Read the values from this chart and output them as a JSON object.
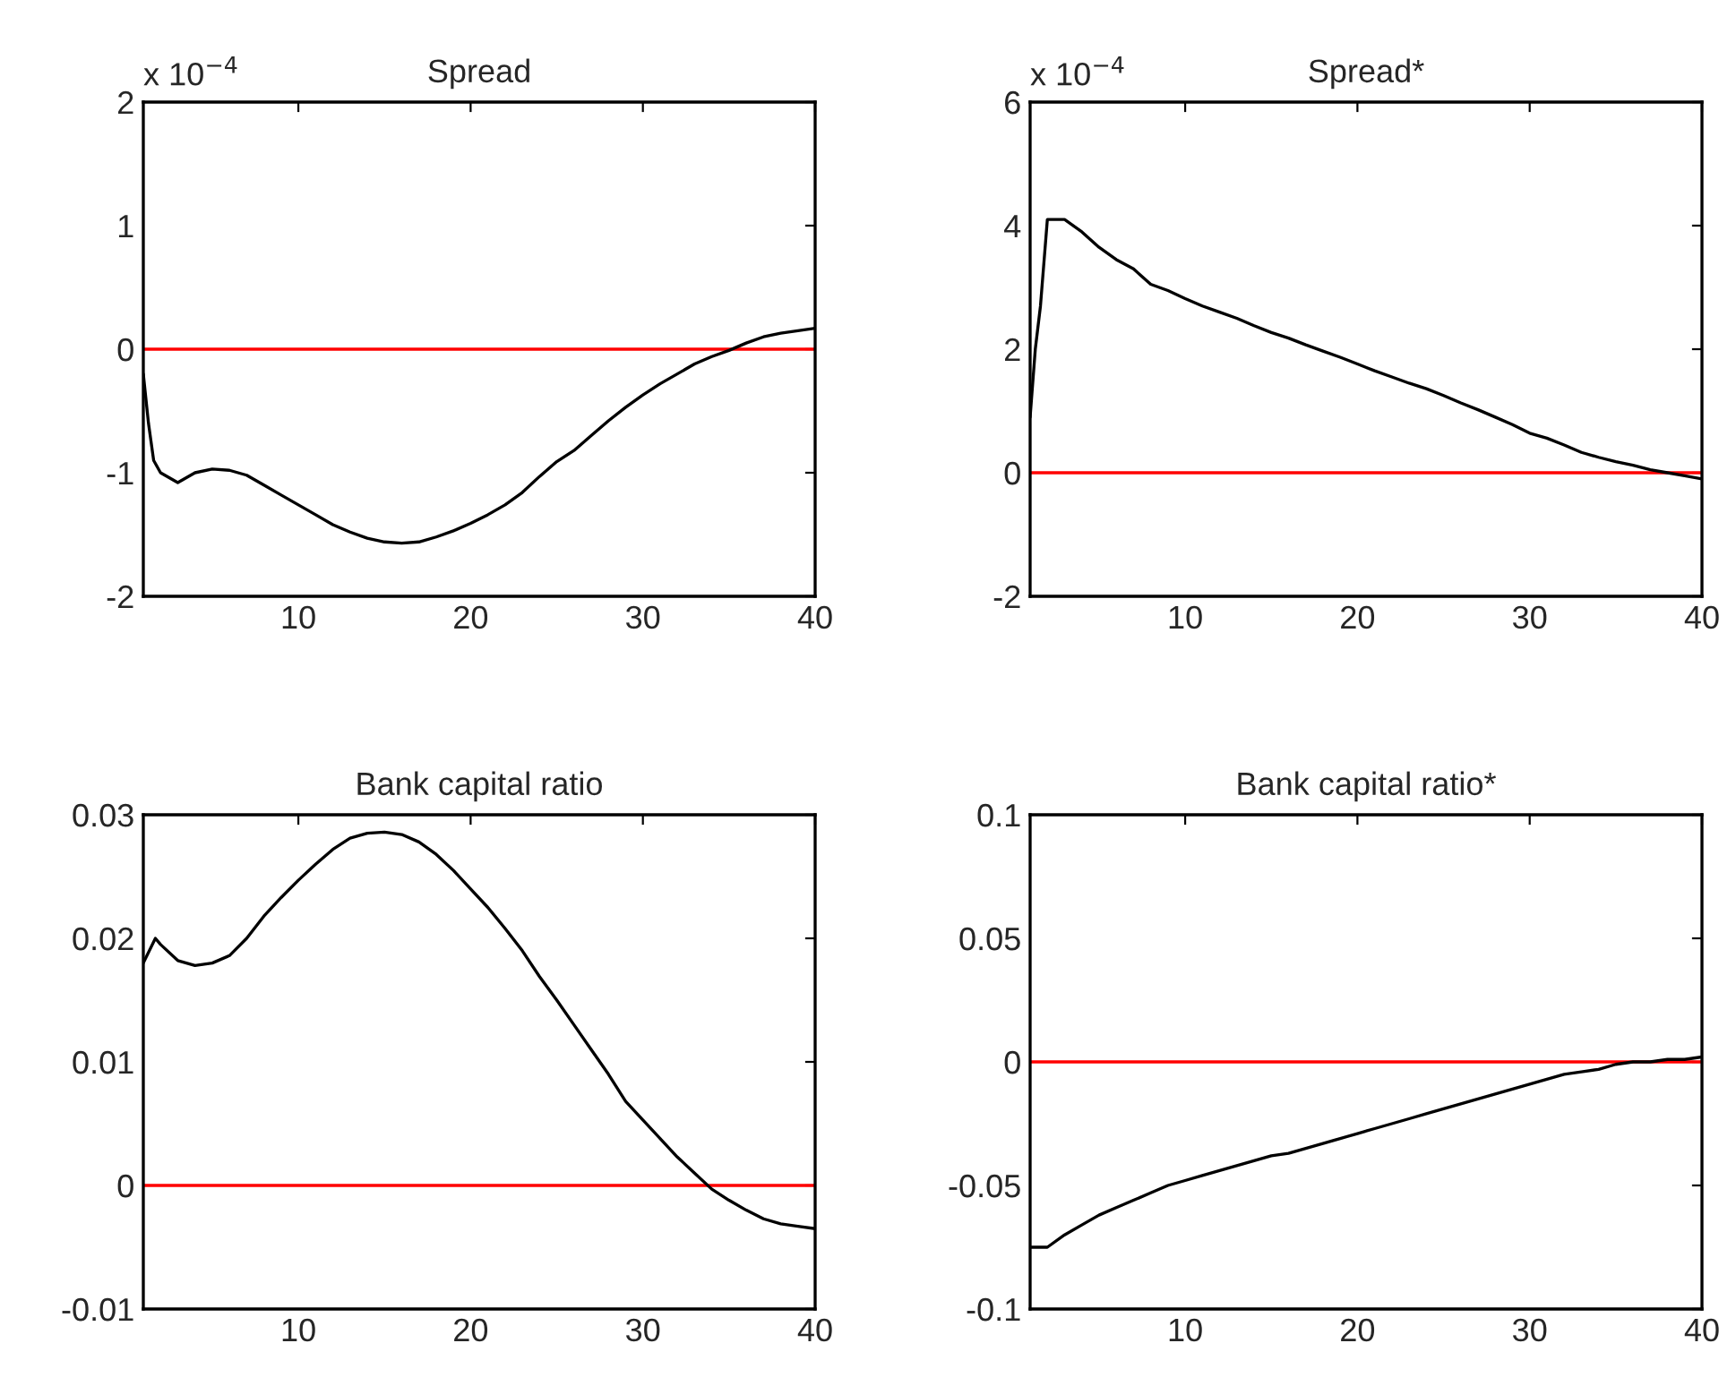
{
  "chart_data": [
    {
      "type": "line",
      "title": "Spread",
      "annotations": [
        "x 10$^{−4}$"
      ],
      "xlim": [
        1,
        40
      ],
      "xticks": [
        10,
        20,
        30,
        40
      ],
      "ylim": [
        -2,
        2
      ],
      "yticks": [
        -2,
        -1,
        0,
        1,
        2
      ],
      "grid": false,
      "legend": false,
      "ref_lines": [
        {
          "axis": "y",
          "value": 0,
          "color": "#ff0000"
        }
      ],
      "series": [
        {
          "color": "#000000",
          "x": [
            1,
            1.3,
            1.6,
            2,
            3,
            4,
            5,
            6,
            7,
            8,
            9,
            10,
            11,
            12,
            13,
            14,
            15,
            16,
            17,
            18,
            19,
            20,
            21,
            22,
            23,
            24,
            25,
            26,
            27,
            28,
            29,
            30,
            31,
            32,
            33,
            34,
            35,
            36,
            37,
            38,
            39,
            40
          ],
          "values": [
            -0.2,
            -0.6,
            -0.9,
            -1.0,
            -1.08,
            -1.0,
            -0.97,
            -0.98,
            -1.02,
            -1.1,
            -1.18,
            -1.26,
            -1.34,
            -1.42,
            -1.48,
            -1.53,
            -1.56,
            -1.57,
            -1.56,
            -1.52,
            -1.47,
            -1.41,
            -1.34,
            -1.26,
            -1.16,
            -1.03,
            -0.91,
            -0.82,
            -0.7,
            -0.58,
            -0.47,
            -0.37,
            -0.28,
            -0.2,
            -0.12,
            -0.06,
            -0.01,
            0.05,
            0.1,
            0.13,
            0.15,
            0.17
          ]
        }
      ]
    },
    {
      "type": "line",
      "title": "Spread*",
      "annotations": [
        "x 10$^{−4}$"
      ],
      "xlim": [
        1,
        40
      ],
      "xticks": [
        10,
        20,
        30,
        40
      ],
      "ylim": [
        -2,
        6
      ],
      "yticks": [
        -2,
        0,
        2,
        4,
        6
      ],
      "grid": false,
      "legend": false,
      "ref_lines": [
        {
          "axis": "y",
          "value": 0,
          "color": "#ff0000"
        }
      ],
      "series": [
        {
          "color": "#000000",
          "x": [
            1,
            1.3,
            1.6,
            2,
            3,
            4,
            5,
            6,
            7,
            8,
            9,
            10,
            11,
            12,
            13,
            14,
            15,
            16,
            17,
            18,
            19,
            20,
            21,
            22,
            23,
            24,
            25,
            26,
            27,
            28,
            29,
            30,
            31,
            32,
            33,
            34,
            35,
            36,
            37,
            38,
            39,
            40
          ],
          "values": [
            0.9,
            2.0,
            2.7,
            4.1,
            4.1,
            3.9,
            3.65,
            3.45,
            3.3,
            3.05,
            2.95,
            2.82,
            2.7,
            2.6,
            2.5,
            2.38,
            2.27,
            2.18,
            2.07,
            1.97,
            1.87,
            1.76,
            1.65,
            1.55,
            1.45,
            1.36,
            1.25,
            1.13,
            1.02,
            0.9,
            0.78,
            0.64,
            0.56,
            0.45,
            0.33,
            0.25,
            0.18,
            0.12,
            0.05,
            0.0,
            -0.05,
            -0.1
          ]
        }
      ]
    },
    {
      "type": "line",
      "title": "Bank capital ratio",
      "xlim": [
        1,
        40
      ],
      "xticks": [
        10,
        20,
        30,
        40
      ],
      "ylim": [
        -0.01,
        0.03
      ],
      "yticks": [
        -0.01,
        0,
        0.01,
        0.02,
        0.03
      ],
      "grid": false,
      "legend": false,
      "ref_lines": [
        {
          "axis": "y",
          "value": 0,
          "color": "#ff0000"
        }
      ],
      "series": [
        {
          "color": "#000000",
          "x": [
            1,
            1.7,
            2,
            3,
            4,
            5,
            6,
            7,
            8,
            9,
            10,
            11,
            12,
            13,
            14,
            15,
            16,
            17,
            18,
            19,
            20,
            21,
            22,
            23,
            24,
            25,
            26,
            27,
            28,
            29,
            30,
            31,
            32,
            33,
            34,
            35,
            36,
            37,
            38,
            39,
            40
          ],
          "values": [
            0.018,
            0.02,
            0.0195,
            0.0182,
            0.0178,
            0.018,
            0.0186,
            0.02,
            0.0218,
            0.0233,
            0.0247,
            0.026,
            0.0272,
            0.0281,
            0.0285,
            0.0286,
            0.0284,
            0.0278,
            0.0268,
            0.0255,
            0.024,
            0.0225,
            0.0208,
            0.019,
            0.0169,
            0.015,
            0.013,
            0.011,
            0.009,
            0.0068,
            0.0053,
            0.0038,
            0.0023,
            0.001,
            -0.0003,
            -0.0012,
            -0.002,
            -0.0027,
            -0.0031,
            -0.0033,
            -0.0035
          ]
        }
      ]
    },
    {
      "type": "line",
      "title": "Bank capital ratio*",
      "xlim": [
        1,
        40
      ],
      "xticks": [
        10,
        20,
        30,
        40
      ],
      "ylim": [
        -0.1,
        0.1
      ],
      "yticks": [
        -0.1,
        -0.05,
        0,
        0.05,
        0.1
      ],
      "grid": false,
      "legend": false,
      "ref_lines": [
        {
          "axis": "y",
          "value": 0,
          "color": "#ff0000"
        }
      ],
      "series": [
        {
          "color": "#000000",
          "x": [
            1,
            2,
            3,
            4,
            5,
            6,
            7,
            8,
            9,
            10,
            11,
            12,
            13,
            14,
            15,
            16,
            17,
            18,
            19,
            20,
            21,
            22,
            23,
            24,
            25,
            26,
            27,
            28,
            29,
            30,
            31,
            32,
            33,
            34,
            35,
            36,
            37,
            38,
            39,
            40
          ],
          "values": [
            -0.075,
            -0.075,
            -0.07,
            -0.066,
            -0.062,
            -0.059,
            -0.056,
            -0.053,
            -0.05,
            -0.048,
            -0.046,
            -0.044,
            -0.042,
            -0.04,
            -0.038,
            -0.037,
            -0.035,
            -0.033,
            -0.031,
            -0.029,
            -0.027,
            -0.025,
            -0.023,
            -0.021,
            -0.019,
            -0.017,
            -0.015,
            -0.013,
            -0.011,
            -0.009,
            -0.007,
            -0.005,
            -0.004,
            -0.003,
            -0.001,
            0.0,
            0.0,
            0.001,
            0.001,
            0.002
          ]
        }
      ]
    }
  ]
}
